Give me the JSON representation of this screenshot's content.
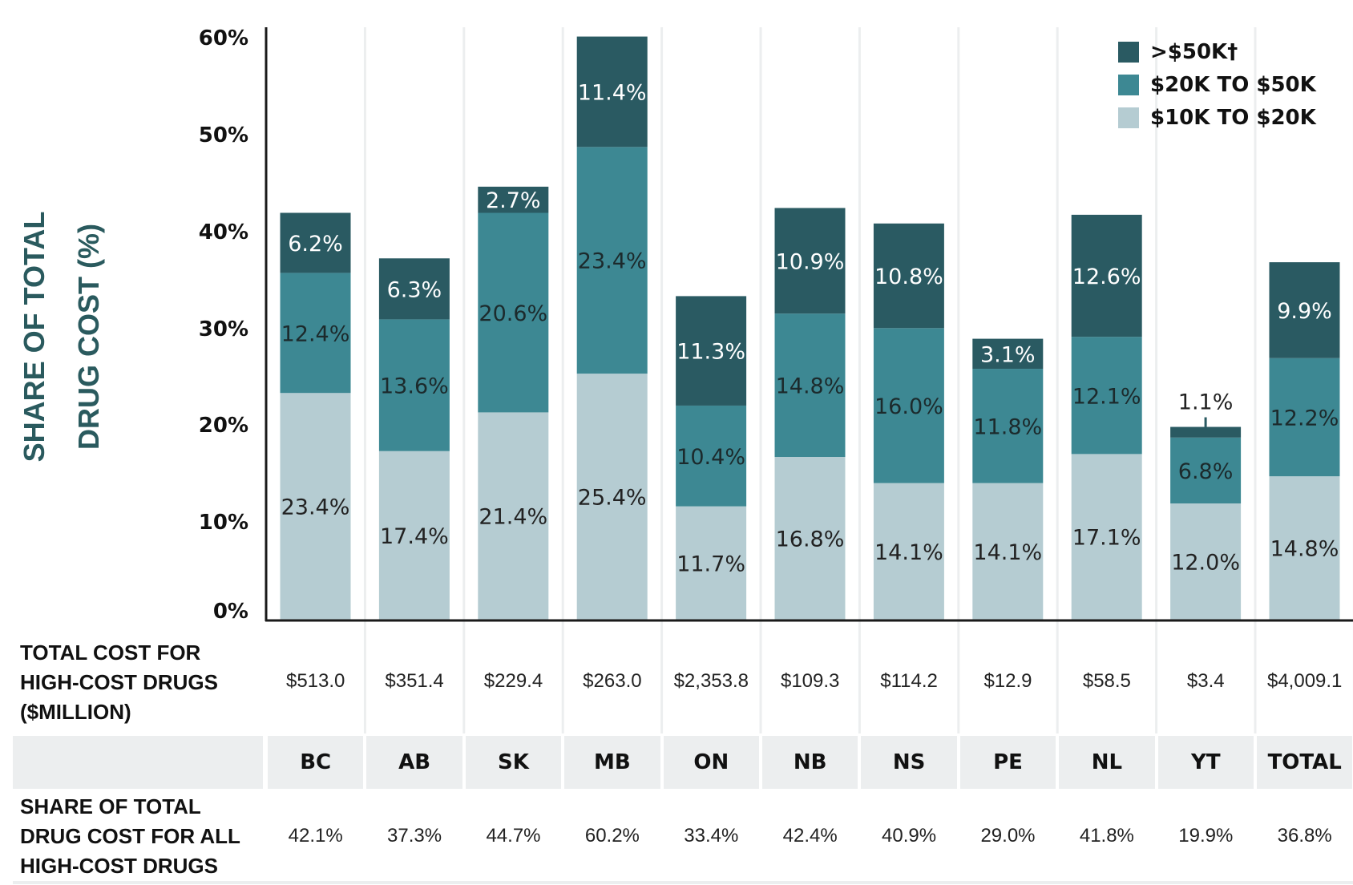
{
  "chart_data": {
    "type": "bar",
    "stacked": true,
    "title": "",
    "ylabel": "SHARE OF TOTAL DRUG COST (%)",
    "ylabel_lines": [
      "SHARE OF TOTAL",
      "DRUG COST (%)"
    ],
    "xlabel": "",
    "ylim": [
      0,
      60
    ],
    "yticks": [
      0,
      10,
      20,
      30,
      40,
      50,
      60
    ],
    "ytick_labels": [
      "0%",
      "10%",
      "20%",
      "30%",
      "40%",
      "50%",
      "60%"
    ],
    "grid": "vertical column separators",
    "legend_position": "top-right",
    "categories": [
      "BC",
      "AB",
      "SK",
      "MB",
      "ON",
      "NB",
      "NS",
      "PE",
      "NL",
      "YT",
      "TOTAL"
    ],
    "series": [
      {
        "name": "$10K TO $20K",
        "color": "#b5ccd2",
        "label_color": "#222222",
        "values": [
          23.4,
          17.4,
          21.4,
          25.4,
          11.7,
          16.8,
          14.1,
          14.1,
          17.1,
          12.0,
          14.8
        ],
        "labels": [
          "23.4%",
          "17.4%",
          "21.4%",
          "25.4%",
          "11.7%",
          "16.8%",
          "14.1%",
          "14.1%",
          "17.1%",
          "12.0%",
          "14.8%"
        ]
      },
      {
        "name": "$20K TO $50K",
        "color": "#3d8893",
        "label_color": "#1c2a2c",
        "values": [
          12.4,
          13.6,
          20.6,
          23.4,
          10.4,
          14.8,
          16.0,
          11.8,
          12.1,
          6.8,
          12.2
        ],
        "labels": [
          "12.4%",
          "13.6%",
          "20.6%",
          "23.4%",
          "10.4%",
          "14.8%",
          "16.0%",
          "11.8%",
          "12.1%",
          "6.8%",
          "12.2%"
        ]
      },
      {
        "name": ">$50K†",
        "color": "#2a5a62",
        "label_color": "#ffffff",
        "values": [
          6.2,
          6.3,
          2.7,
          11.4,
          11.3,
          10.9,
          10.8,
          3.1,
          12.6,
          1.1,
          9.9
        ],
        "labels": [
          "6.2%",
          "6.3%",
          "2.7%",
          "11.4%",
          "11.3%",
          "10.9%",
          "10.8%",
          "3.1%",
          "12.6%",
          "1.1%",
          "9.9%"
        ],
        "outside_label_indices": [
          9
        ]
      }
    ],
    "legend": [
      ">$50K†",
      "$20K TO $50K",
      "$10K TO $20K"
    ]
  },
  "table": {
    "cost_row_label_lines": [
      "TOTAL COST FOR",
      "HIGH-COST DRUGS",
      "($MILLION)"
    ],
    "cost_values": [
      "$513.0",
      "$351.4",
      "$229.4",
      "$263.0",
      "$2,353.8",
      "$109.3",
      "$114.2",
      "$12.9",
      "$58.5",
      "$3.4",
      "$4,009.1"
    ],
    "header_cells": [
      "BC",
      "AB",
      "SK",
      "MB",
      "ON",
      "NB",
      "NS",
      "PE",
      "NL",
      "YT",
      "TOTAL"
    ],
    "share_row_label_lines": [
      "SHARE OF TOTAL",
      "DRUG COST FOR ALL",
      "HIGH-COST DRUGS"
    ],
    "share_values": [
      "42.1%",
      "37.3%",
      "44.7%",
      "60.2%",
      "33.4%",
      "42.4%",
      "40.9%",
      "29.0%",
      "41.8%",
      "19.9%",
      "36.8%"
    ]
  },
  "colors": {
    "axis_title": "#2a5a5e",
    "header_bg": "#eceeef",
    "gridline": "#eceeef"
  }
}
